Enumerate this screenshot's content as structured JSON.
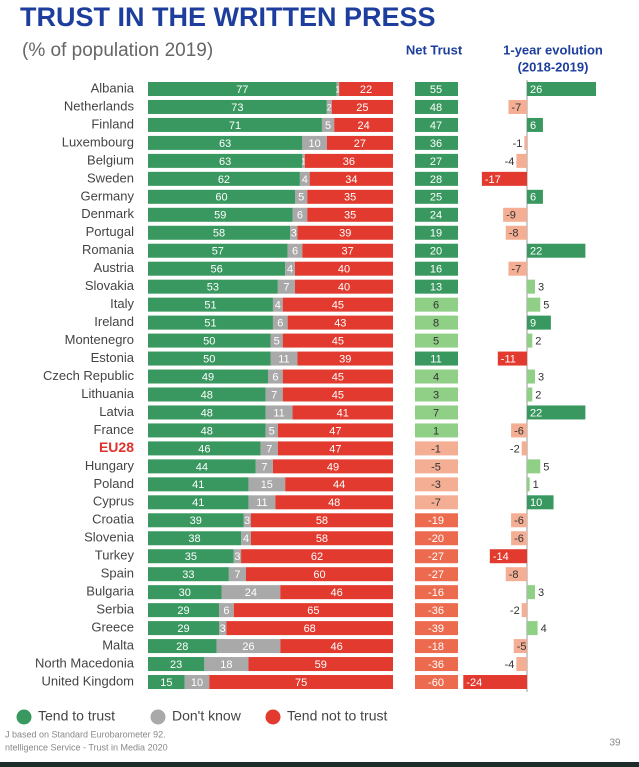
{
  "chart_data": [
    {
      "type": "stacked-bar",
      "title": "TRUST IN THE WRITTEN PRESS",
      "subtitle": "(% of population 2019)",
      "categories": [
        "Albania",
        "Netherlands",
        "Finland",
        "Luxembourg",
        "Belgium",
        "Sweden",
        "Germany",
        "Denmark",
        "Portugal",
        "Romania",
        "Austria",
        "Slovakia",
        "Italy",
        "Ireland",
        "Montenegro",
        "Estonia",
        "Czech Republic",
        "Lithuania",
        "Latvia",
        "France",
        "EU28",
        "Hungary",
        "Poland",
        "Cyprus",
        "Croatia",
        "Slovenia",
        "Turkey",
        "Spain",
        "Bulgaria",
        "Serbia",
        "Greece",
        "Malta",
        "North Macedonia",
        "United Kingdom"
      ],
      "highlight": "EU28",
      "highlight_color": "#e0312b",
      "xlim": [
        0,
        100
      ],
      "series": [
        {
          "name": "Tend to trust",
          "color": "#39985f",
          "values": [
            77,
            73,
            71,
            63,
            63,
            62,
            60,
            59,
            58,
            57,
            56,
            53,
            51,
            51,
            50,
            50,
            49,
            48,
            48,
            48,
            46,
            44,
            41,
            41,
            39,
            38,
            35,
            33,
            30,
            29,
            29,
            28,
            23,
            15
          ]
        },
        {
          "name": "Don't know",
          "color": "#a9a9a9",
          "values": [
            1,
            2,
            5,
            10,
            1,
            4,
            5,
            6,
            3,
            6,
            4,
            7,
            4,
            6,
            5,
            11,
            6,
            7,
            11,
            5,
            7,
            7,
            15,
            11,
            3,
            4,
            3,
            7,
            24,
            6,
            3,
            26,
            18,
            10
          ]
        },
        {
          "name": "Tend not to trust",
          "color": "#e23a2f",
          "values": [
            22,
            25,
            24,
            27,
            36,
            34,
            35,
            35,
            39,
            37,
            40,
            40,
            45,
            43,
            45,
            39,
            45,
            45,
            41,
            47,
            47,
            49,
            44,
            48,
            58,
            58,
            62,
            60,
            46,
            65,
            68,
            46,
            59,
            75
          ]
        }
      ]
    },
    {
      "type": "cells",
      "title": "Net Trust",
      "positive_color": "#39985f",
      "light_positive_color": "#8fcf86",
      "light_negative_color": "#f4ae94",
      "negative_color": "#ec6b4f",
      "values": [
        55,
        48,
        47,
        36,
        27,
        28,
        25,
        24,
        19,
        20,
        16,
        13,
        6,
        8,
        5,
        11,
        4,
        3,
        7,
        1,
        -1,
        -5,
        -3,
        -7,
        -19,
        -20,
        -27,
        -27,
        -16,
        -36,
        -39,
        -18,
        -36,
        -60
      ]
    },
    {
      "type": "diverging-bar",
      "title": "1-year evolution",
      "subtitle": "(2018-2019)",
      "xlim": [
        -26,
        26
      ],
      "positive_color": "#39985f",
      "light_positive_color": "#8fcf86",
      "negative_color": "#e23a2f",
      "light_negative_color": "#f4ae94",
      "values": [
        26,
        -7,
        6,
        -1,
        -4,
        -17,
        6,
        -9,
        -8,
        22,
        -7,
        3,
        5,
        9,
        2,
        -11,
        3,
        2,
        22,
        -6,
        -2,
        5,
        1,
        10,
        -6,
        -6,
        -14,
        -8,
        3,
        -2,
        4,
        -5,
        -4,
        -24
      ]
    }
  ],
  "footer": [
    "J based on Standard Eurobarometer 92.",
    "ntelligence Service - Trust in Media 2020"
  ],
  "page_number": "39"
}
